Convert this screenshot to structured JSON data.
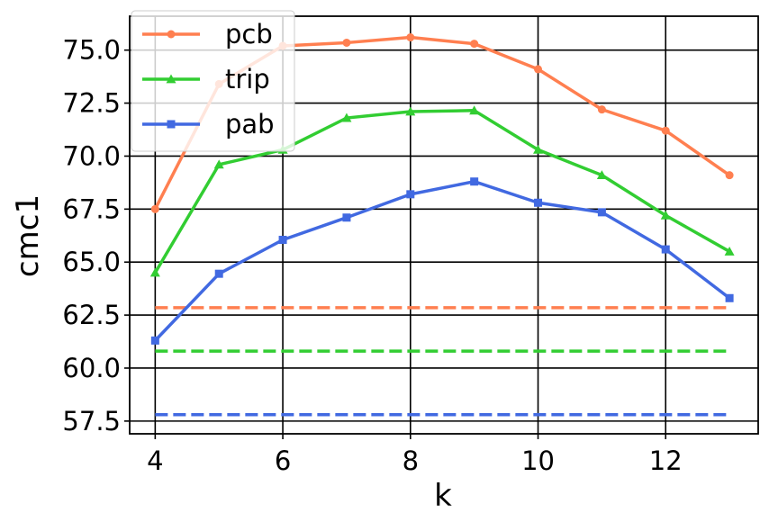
{
  "chart_data": {
    "type": "line",
    "xlabel": "k",
    "ylabel": "cmc1",
    "xlim": [
      3.6,
      13.45
    ],
    "ylim": [
      56.9,
      76.6
    ],
    "xticks": [
      4,
      6,
      8,
      10,
      12
    ],
    "yticks": [
      57.5,
      60.0,
      62.5,
      65.0,
      67.5,
      70.0,
      72.5,
      75.0
    ],
    "xtick_labels": [
      "4",
      "6",
      "8",
      "10",
      "12"
    ],
    "ytick_labels": [
      "57.5",
      "60.0",
      "62.5",
      "65.0",
      "67.5",
      "70.0",
      "72.5",
      "75.0"
    ],
    "grid": true,
    "legend_position": "top-left",
    "x": [
      4,
      5,
      6,
      7,
      8,
      9,
      10,
      11,
      12,
      13
    ],
    "series": [
      {
        "name": "pcb",
        "color": "#FF7F50",
        "marker": "circle",
        "values": [
          67.5,
          73.4,
          75.2,
          75.35,
          75.6,
          75.3,
          74.1,
          72.2,
          71.2,
          69.1
        ]
      },
      {
        "name": "trip",
        "color": "#32CD32",
        "marker": "triangle",
        "values": [
          64.5,
          69.6,
          70.3,
          71.8,
          72.1,
          72.15,
          70.3,
          69.1,
          67.2,
          65.5
        ]
      },
      {
        "name": "pab",
        "color": "#4169E1",
        "marker": "square",
        "values": [
          61.3,
          64.45,
          66.05,
          67.1,
          68.2,
          68.8,
          67.8,
          67.35,
          65.6,
          63.3
        ]
      }
    ],
    "baselines": [
      {
        "color": "#FF7F50",
        "value": 62.85,
        "x": [
          4,
          13
        ]
      },
      {
        "color": "#32CD32",
        "value": 60.8,
        "x": [
          4,
          13
        ]
      },
      {
        "color": "#4169E1",
        "value": 57.8,
        "x": [
          4,
          13
        ]
      }
    ]
  }
}
